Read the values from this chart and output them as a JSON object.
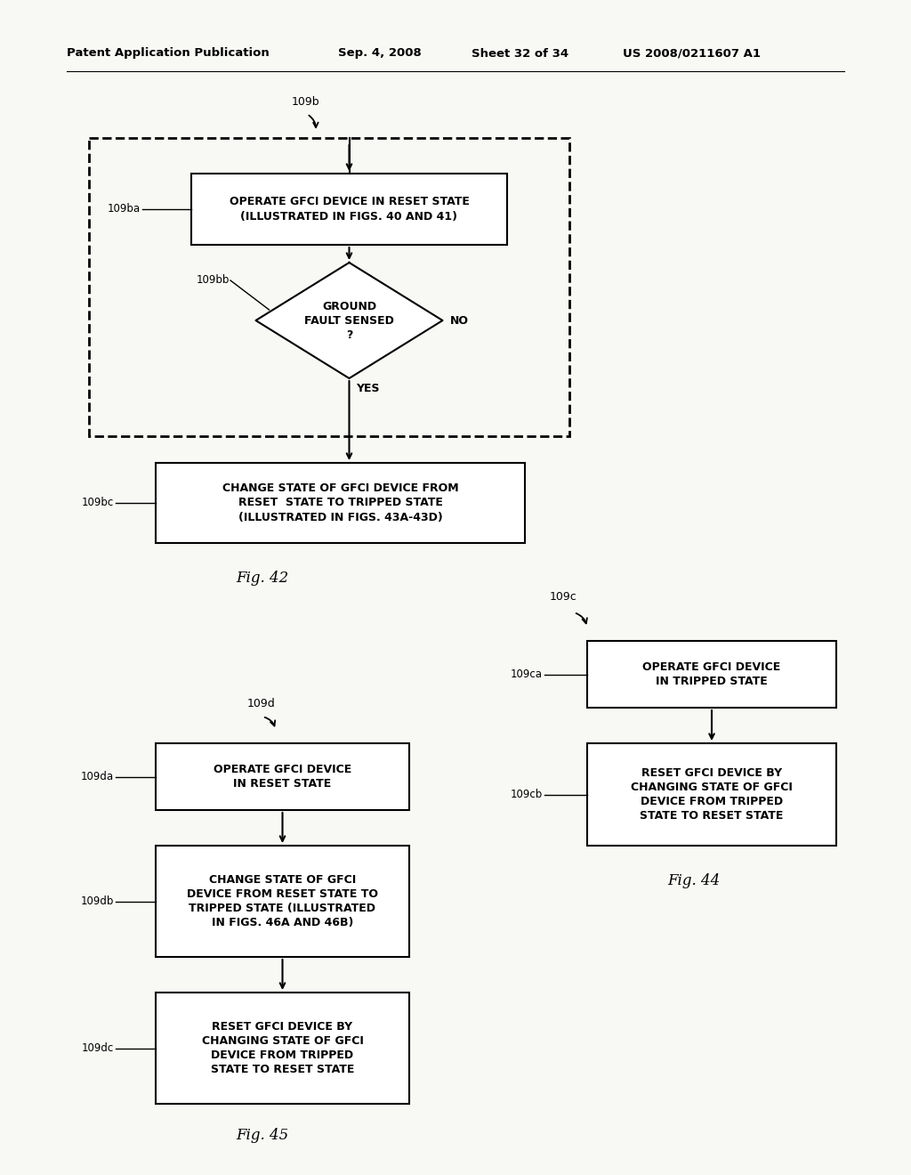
{
  "bg_color": "#f8f8f5",
  "header_text": "Patent Application Publication",
  "header_date": "Sep. 4, 2008",
  "header_sheet": "Sheet 32 of 34",
  "header_patent": "US 2008/0211607 A1",
  "fig42_ref": "109b",
  "fig42_label": "Fig. 42",
  "fig44_ref": "109c",
  "fig44_label": "Fig. 44",
  "fig45_ref": "109d",
  "fig45_label": "Fig. 45"
}
